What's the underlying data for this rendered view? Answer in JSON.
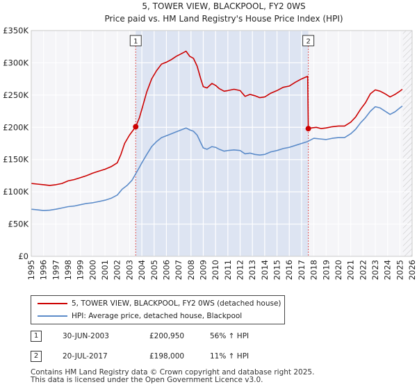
{
  "chart_data": {
    "type": "line",
    "title": "5, TOWER VIEW, BLACKPOOL, FY2 0WS",
    "subtitle": "Price paid vs. HM Land Registry's House Price Index (HPI)",
    "xlabel": "",
    "ylabel": "",
    "xlim": [
      1995.0,
      2026.0
    ],
    "ylim": [
      0,
      350000
    ],
    "x_ticks": [
      "1995",
      "1996",
      "1997",
      "1998",
      "1999",
      "2000",
      "2001",
      "2002",
      "2003",
      "2004",
      "2005",
      "2006",
      "2007",
      "2008",
      "2009",
      "2010",
      "2011",
      "2012",
      "2013",
      "2014",
      "2015",
      "2016",
      "2017",
      "2018",
      "2019",
      "2020",
      "2021",
      "2022",
      "2023",
      "2024",
      "2025",
      "2026"
    ],
    "y_ticks": [
      {
        "value": 0,
        "label": "£0"
      },
      {
        "value": 50000,
        "label": "£50K"
      },
      {
        "value": 100000,
        "label": "£100K"
      },
      {
        "value": 150000,
        "label": "£150K"
      },
      {
        "value": 200000,
        "label": "£200K"
      },
      {
        "value": 250000,
        "label": "£250K"
      },
      {
        "value": 300000,
        "label": "£300K"
      },
      {
        "value": 350000,
        "label": "£350K"
      }
    ],
    "grid": true,
    "shaded_range": [
      2003.5,
      2017.55
    ],
    "future_hatch_start": 2025.25,
    "series": [
      {
        "name": "5, TOWER VIEW, BLACKPOOL, FY2 0WS (detached house)",
        "color": "#cc0000",
        "points": [
          [
            1995.0,
            113000
          ],
          [
            1995.5,
            112000
          ],
          [
            1996.0,
            111000
          ],
          [
            1996.5,
            110000
          ],
          [
            1997.0,
            111000
          ],
          [
            1997.5,
            113000
          ],
          [
            1998.0,
            117000
          ],
          [
            1998.5,
            119000
          ],
          [
            1999.0,
            122000
          ],
          [
            1999.5,
            125000
          ],
          [
            2000.0,
            129000
          ],
          [
            2000.5,
            132000
          ],
          [
            2001.0,
            135000
          ],
          [
            2001.5,
            139000
          ],
          [
            2002.0,
            145000
          ],
          [
            2002.3,
            158000
          ],
          [
            2002.6,
            175000
          ],
          [
            2003.0,
            188000
          ],
          [
            2003.5,
            200950
          ],
          [
            2003.8,
            215000
          ],
          [
            2004.0,
            228000
          ],
          [
            2004.4,
            255000
          ],
          [
            2004.8,
            275000
          ],
          [
            2005.2,
            288000
          ],
          [
            2005.6,
            298000
          ],
          [
            2006.0,
            301000
          ],
          [
            2006.4,
            305000
          ],
          [
            2006.8,
            310000
          ],
          [
            2007.2,
            314000
          ],
          [
            2007.6,
            318000
          ],
          [
            2007.9,
            310000
          ],
          [
            2008.2,
            307000
          ],
          [
            2008.5,
            295000
          ],
          [
            2008.8,
            275000
          ],
          [
            2009.0,
            263000
          ],
          [
            2009.3,
            261000
          ],
          [
            2009.7,
            268000
          ],
          [
            2010.0,
            265000
          ],
          [
            2010.3,
            260000
          ],
          [
            2010.7,
            256000
          ],
          [
            2011.0,
            257000
          ],
          [
            2011.5,
            259000
          ],
          [
            2012.0,
            257000
          ],
          [
            2012.4,
            248000
          ],
          [
            2012.8,
            251000
          ],
          [
            2013.2,
            249000
          ],
          [
            2013.6,
            246000
          ],
          [
            2014.0,
            247000
          ],
          [
            2014.5,
            253000
          ],
          [
            2015.0,
            257000
          ],
          [
            2015.5,
            262000
          ],
          [
            2016.0,
            264000
          ],
          [
            2016.5,
            270000
          ],
          [
            2017.0,
            275000
          ],
          [
            2017.35,
            278000
          ],
          [
            2017.5,
            279000
          ],
          [
            2017.55,
            198000
          ],
          [
            2017.8,
            199000
          ],
          [
            2018.2,
            200000
          ],
          [
            2018.6,
            198000
          ],
          [
            2019.0,
            199000
          ],
          [
            2019.5,
            201000
          ],
          [
            2020.0,
            202000
          ],
          [
            2020.5,
            202000
          ],
          [
            2021.0,
            208000
          ],
          [
            2021.4,
            216000
          ],
          [
            2021.8,
            228000
          ],
          [
            2022.2,
            238000
          ],
          [
            2022.6,
            252000
          ],
          [
            2023.0,
            258000
          ],
          [
            2023.4,
            256000
          ],
          [
            2023.8,
            252000
          ],
          [
            2024.2,
            247000
          ],
          [
            2024.6,
            251000
          ],
          [
            2025.0,
            256000
          ],
          [
            2025.2,
            259000
          ]
        ]
      },
      {
        "name": "HPI: Average price, detached house, Blackpool",
        "color": "#5b8bc9",
        "points": [
          [
            1995.0,
            73000
          ],
          [
            1995.5,
            72000
          ],
          [
            1996.0,
            71000
          ],
          [
            1996.5,
            71500
          ],
          [
            1997.0,
            73000
          ],
          [
            1997.5,
            75000
          ],
          [
            1998.0,
            77000
          ],
          [
            1998.5,
            78000
          ],
          [
            1999.0,
            80000
          ],
          [
            1999.5,
            82000
          ],
          [
            2000.0,
            83000
          ],
          [
            2000.5,
            85000
          ],
          [
            2001.0,
            87000
          ],
          [
            2001.5,
            90000
          ],
          [
            2002.0,
            95000
          ],
          [
            2002.4,
            104000
          ],
          [
            2002.8,
            110000
          ],
          [
            2003.2,
            118000
          ],
          [
            2003.5,
            128000
          ],
          [
            2003.8,
            138000
          ],
          [
            2004.0,
            145000
          ],
          [
            2004.4,
            158000
          ],
          [
            2004.8,
            170000
          ],
          [
            2005.2,
            178000
          ],
          [
            2005.6,
            184000
          ],
          [
            2006.0,
            187000
          ],
          [
            2006.4,
            190000
          ],
          [
            2006.8,
            193000
          ],
          [
            2007.2,
            196000
          ],
          [
            2007.6,
            199000
          ],
          [
            2007.9,
            196000
          ],
          [
            2008.2,
            194000
          ],
          [
            2008.5,
            188000
          ],
          [
            2008.8,
            176000
          ],
          [
            2009.0,
            168000
          ],
          [
            2009.3,
            166000
          ],
          [
            2009.7,
            170000
          ],
          [
            2010.0,
            169000
          ],
          [
            2010.3,
            166000
          ],
          [
            2010.7,
            163000
          ],
          [
            2011.0,
            164000
          ],
          [
            2011.5,
            165000
          ],
          [
            2012.0,
            164000
          ],
          [
            2012.4,
            159000
          ],
          [
            2012.8,
            160000
          ],
          [
            2013.2,
            158000
          ],
          [
            2013.6,
            157000
          ],
          [
            2014.0,
            158000
          ],
          [
            2014.5,
            162000
          ],
          [
            2015.0,
            164000
          ],
          [
            2015.5,
            167000
          ],
          [
            2016.0,
            169000
          ],
          [
            2016.5,
            172000
          ],
          [
            2017.0,
            175000
          ],
          [
            2017.5,
            178000
          ],
          [
            2018.0,
            183000
          ],
          [
            2018.5,
            182000
          ],
          [
            2019.0,
            181000
          ],
          [
            2019.5,
            183000
          ],
          [
            2020.0,
            184000
          ],
          [
            2020.5,
            184000
          ],
          [
            2021.0,
            190000
          ],
          [
            2021.4,
            197000
          ],
          [
            2021.8,
            207000
          ],
          [
            2022.2,
            215000
          ],
          [
            2022.6,
            225000
          ],
          [
            2023.0,
            232000
          ],
          [
            2023.4,
            230000
          ],
          [
            2023.8,
            225000
          ],
          [
            2024.2,
            220000
          ],
          [
            2024.6,
            224000
          ],
          [
            2025.0,
            230000
          ],
          [
            2025.2,
            233000
          ]
        ]
      }
    ],
    "annotations": [
      {
        "label": "1",
        "x": 2003.5,
        "y": 200950,
        "date": "30-JUN-2003",
        "price": "£200,950",
        "hpi": "56% ↑ HPI"
      },
      {
        "label": "2",
        "x": 2017.55,
        "y": 198000,
        "date": "20-JUL-2017",
        "price": "£198,000",
        "hpi": "11% ↑ HPI"
      }
    ]
  },
  "footer": {
    "line1": "Contains HM Land Registry data © Crown copyright and database right 2025.",
    "line2": "This data is licensed under the Open Government Licence v3.0."
  }
}
